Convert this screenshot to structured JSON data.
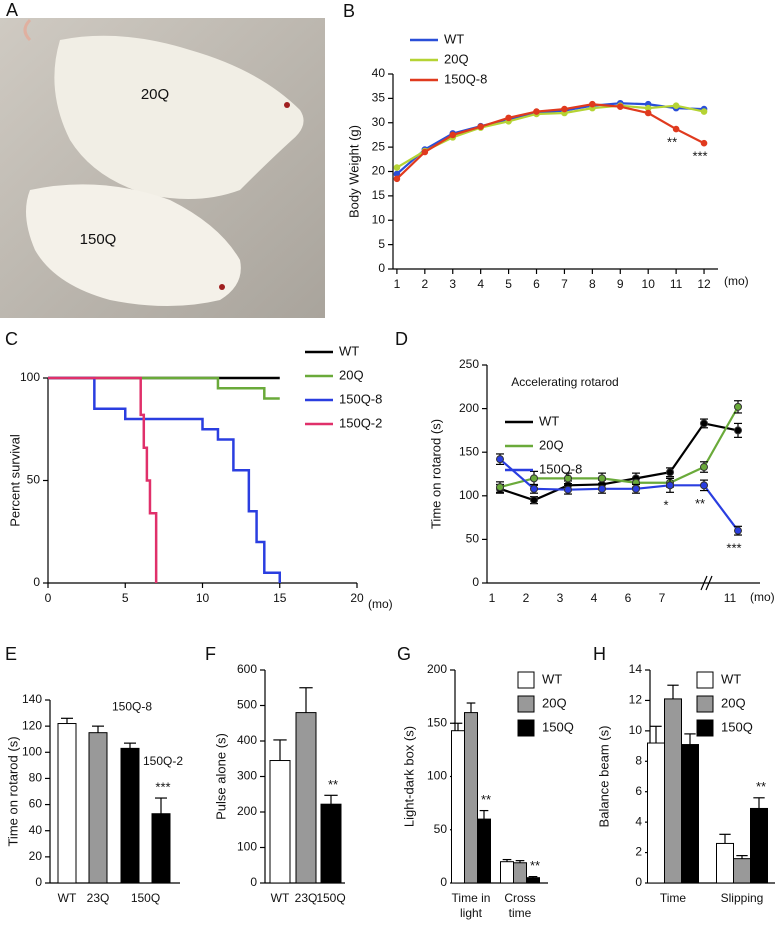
{
  "photo": {
    "panel": "A",
    "labels": [
      "20Q",
      "150Q"
    ]
  },
  "chart_data": [
    {
      "panel": "B",
      "type": "line",
      "ylabel": "Body Weight (g)",
      "xlabel": "(mo)",
      "x": [
        1,
        2,
        3,
        4,
        5,
        6,
        7,
        8,
        9,
        10,
        11,
        12
      ],
      "xlim": [
        0.86,
        12.5
      ],
      "xticks": [
        1,
        2,
        3,
        4,
        5,
        6,
        7,
        8,
        9,
        10,
        11,
        12
      ],
      "ylim": [
        0,
        40
      ],
      "yticks": [
        0,
        5,
        10,
        15,
        20,
        25,
        30,
        35,
        40
      ],
      "series": [
        {
          "name": "WT",
          "color": "#2a4fd8",
          "values": [
            19.5,
            24.5,
            27.8,
            29.3,
            30.7,
            32,
            32.5,
            33.5,
            34,
            33.8,
            33,
            32.8
          ]
        },
        {
          "name": "20Q",
          "color": "#b5d334",
          "values": [
            20.8,
            24.2,
            27,
            29,
            30.3,
            31.8,
            32,
            33,
            33.5,
            33,
            33.5,
            32.3
          ]
        },
        {
          "name": "150Q-8",
          "color": "#e03a1e",
          "values": [
            18.5,
            24,
            27.5,
            29.2,
            31,
            32.3,
            32.8,
            33.8,
            33.3,
            32,
            28.7,
            25.8
          ]
        }
      ],
      "annotations": [
        {
          "text": "**",
          "series": 2,
          "index": 10
        },
        {
          "text": "***",
          "series": 2,
          "index": 11
        }
      ]
    },
    {
      "panel": "C",
      "type": "line",
      "ylabel": "Percent survival",
      "xlabel": "(mo)",
      "xlim": [
        0,
        20
      ],
      "xticks": [
        0,
        5,
        10,
        15,
        20
      ],
      "ylim": [
        0,
        100
      ],
      "yticks": [
        0,
        50,
        100
      ],
      "series": [
        {
          "name": "WT",
          "color": "#000000",
          "x": [
            0,
            15
          ],
          "values": [
            100,
            100
          ]
        },
        {
          "name": "20Q",
          "color": "#6aaa3a",
          "x": [
            0,
            11,
            11,
            14,
            14,
            15
          ],
          "values": [
            100,
            100,
            95,
            95,
            90,
            90
          ]
        },
        {
          "name": "150Q-8",
          "color": "#2a3ee0",
          "x": [
            0,
            3,
            3,
            5,
            5,
            10,
            10,
            11,
            11,
            12,
            12,
            13,
            13,
            13.5,
            13.5,
            14,
            14,
            15,
            15
          ],
          "values": [
            100,
            100,
            85,
            85,
            80,
            80,
            75,
            75,
            70,
            70,
            55,
            55,
            35,
            35,
            20,
            20,
            5,
            5,
            0
          ]
        },
        {
          "name": "150Q-2",
          "color": "#e0306a",
          "x": [
            0,
            6,
            6,
            6.2,
            6.2,
            6.4,
            6.4,
            6.6,
            6.6,
            7,
            7
          ],
          "values": [
            100,
            100,
            82,
            82,
            66,
            66,
            50,
            50,
            34,
            34,
            0
          ]
        }
      ]
    },
    {
      "panel": "D",
      "type": "line",
      "title": "Accelerating rotarod",
      "ylabel": "Time on rotarod (s)",
      "xlabel": "(mo)",
      "categories": [
        "1",
        "2",
        "3",
        "4",
        "6",
        "7",
        null,
        "11"
      ],
      "ylim": [
        0,
        250
      ],
      "yticks": [
        0,
        50,
        100,
        150,
        200,
        250
      ],
      "series": [
        {
          "name": "WT",
          "color": "#000000",
          "values": [
            108,
            95,
            112,
            113,
            120,
            127,
            183,
            175
          ],
          "errors": [
            5,
            4,
            5,
            5,
            6,
            5,
            5,
            8
          ]
        },
        {
          "name": "20Q",
          "color": "#6aaa3a",
          "values": [
            110,
            120,
            120,
            120,
            115,
            115,
            133,
            202
          ],
          "errors": [
            6,
            8,
            6,
            6,
            5,
            5,
            6,
            7
          ]
        },
        {
          "name": "150Q-8",
          "color": "#2a3ee0",
          "values": [
            142,
            108,
            107,
            108,
            108,
            112,
            112,
            60
          ],
          "errors": [
            6,
            5,
            5,
            5,
            5,
            8,
            6,
            5
          ]
        }
      ],
      "annotations": [
        {
          "text": "*",
          "series": 2,
          "index": 5
        },
        {
          "text": "**",
          "series": 2,
          "index": 6
        },
        {
          "text": "***",
          "series": 2,
          "index": 7
        }
      ]
    },
    {
      "panel": "E",
      "type": "bar",
      "ylabel": "Time on rotarod (s)",
      "categories": [
        "WT",
        "23Q",
        "150Q-8",
        "150Q-2"
      ],
      "group_label": "150Q",
      "values": [
        122,
        115,
        103,
        53
      ],
      "errors": [
        4,
        5,
        4,
        12
      ],
      "colors": [
        "#ffffff",
        "#999999",
        "#000000",
        "#000000"
      ],
      "ylim": [
        0,
        140
      ],
      "yticks": [
        0,
        20,
        40,
        60,
        80,
        100,
        120,
        140
      ],
      "annotations": [
        {
          "text": "***",
          "index": 3
        }
      ]
    },
    {
      "panel": "F",
      "type": "bar",
      "ylabel": "Pulse alone (s)",
      "categories": [
        "WT",
        "23Q",
        "150Q"
      ],
      "values": [
        345,
        480,
        222
      ],
      "errors": [
        58,
        70,
        25
      ],
      "colors": [
        "#ffffff",
        "#999999",
        "#000000"
      ],
      "ylim": [
        0,
        600
      ],
      "yticks": [
        0,
        100,
        200,
        300,
        400,
        500,
        600
      ],
      "annotations": [
        {
          "text": "**",
          "index": 2
        }
      ]
    },
    {
      "panel": "G",
      "type": "bar",
      "ylabel": "Light-dark box (s)",
      "categories": [
        [
          "Time in",
          "light"
        ],
        [
          "Cross",
          "time"
        ]
      ],
      "ylim": [
        0,
        200
      ],
      "yticks": [
        0,
        50,
        100,
        150,
        200
      ],
      "series": [
        {
          "name": "WT",
          "color": "#ffffff",
          "values": [
            143,
            20
          ],
          "errors": [
            7,
            2
          ]
        },
        {
          "name": "20Q",
          "color": "#999999",
          "values": [
            160,
            19
          ],
          "errors": [
            9,
            2
          ]
        },
        {
          "name": "150Q",
          "color": "#000000",
          "values": [
            60,
            5
          ],
          "errors": [
            8,
            1
          ]
        }
      ],
      "annotations": [
        {
          "text": "**",
          "series": 2,
          "index": 0
        },
        {
          "text": "**",
          "series": 2,
          "index": 1
        }
      ]
    },
    {
      "panel": "H",
      "type": "bar",
      "ylabel": "Balance beam (s)",
      "categories": [
        "Time",
        "Slipping"
      ],
      "ylim": [
        0,
        14
      ],
      "yticks": [
        0,
        2,
        4,
        6,
        8,
        10,
        12,
        14
      ],
      "series": [
        {
          "name": "WT",
          "color": "#ffffff",
          "values": [
            9.2,
            2.6
          ],
          "errors": [
            1.1,
            0.6
          ]
        },
        {
          "name": "20Q",
          "color": "#999999",
          "values": [
            12.1,
            1.6
          ],
          "errors": [
            0.9,
            0.2
          ]
        },
        {
          "name": "150Q",
          "color": "#000000",
          "values": [
            9.1,
            4.9
          ],
          "errors": [
            0.7,
            0.7
          ]
        }
      ],
      "annotations": [
        {
          "text": "**",
          "series": 2,
          "index": 1
        }
      ]
    }
  ]
}
